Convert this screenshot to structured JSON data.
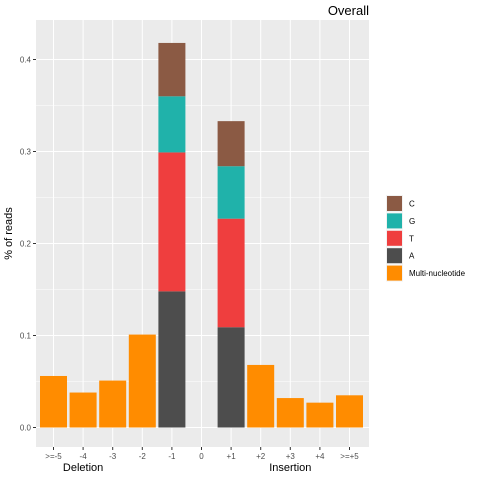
{
  "chart_data": {
    "type": "bar",
    "stacked": true,
    "title": "Overall",
    "ylabel": "% of reads",
    "ylim": [
      0,
      0.44
    ],
    "yticks": [
      0.0,
      0.1,
      0.2,
      0.3,
      0.4
    ],
    "ytick_labels": [
      "0.0",
      "0.1",
      "0.2",
      "0.3",
      "0.4"
    ],
    "grid": true,
    "legend_position": "right",
    "categories": [
      ">=-5",
      "-4",
      "-3",
      "-2",
      "-1",
      "0",
      "+1",
      "+2",
      "+3",
      "+4",
      ">=+5"
    ],
    "group_labels": [
      {
        "label": "Deletion",
        "category": "-4"
      },
      {
        "label": "Insertion",
        "category": "+3"
      }
    ],
    "series": [
      {
        "name": "A",
        "color": "#4D4D4D",
        "values": [
          0,
          0,
          0,
          0,
          0.148,
          0,
          0.109,
          0,
          0,
          0,
          0
        ]
      },
      {
        "name": "T",
        "color": "#EF3E3E",
        "values": [
          0,
          0,
          0,
          0,
          0.151,
          0,
          0.118,
          0,
          0,
          0,
          0
        ]
      },
      {
        "name": "G",
        "color": "#20B2AA",
        "values": [
          0,
          0,
          0,
          0,
          0.061,
          0,
          0.057,
          0,
          0,
          0,
          0
        ]
      },
      {
        "name": "C",
        "color": "#8B5A44",
        "values": [
          0,
          0,
          0,
          0,
          0.058,
          0,
          0.049,
          0,
          0,
          0,
          0
        ]
      },
      {
        "name": "Multi-nucleotide",
        "color": "#FF8C00",
        "values": [
          0.056,
          0.038,
          0.051,
          0.101,
          0,
          0,
          0,
          0.068,
          0.032,
          0.027,
          0.035
        ]
      }
    ],
    "legend_order": [
      "C",
      "G",
      "T",
      "A",
      "Multi-nucleotide"
    ]
  }
}
